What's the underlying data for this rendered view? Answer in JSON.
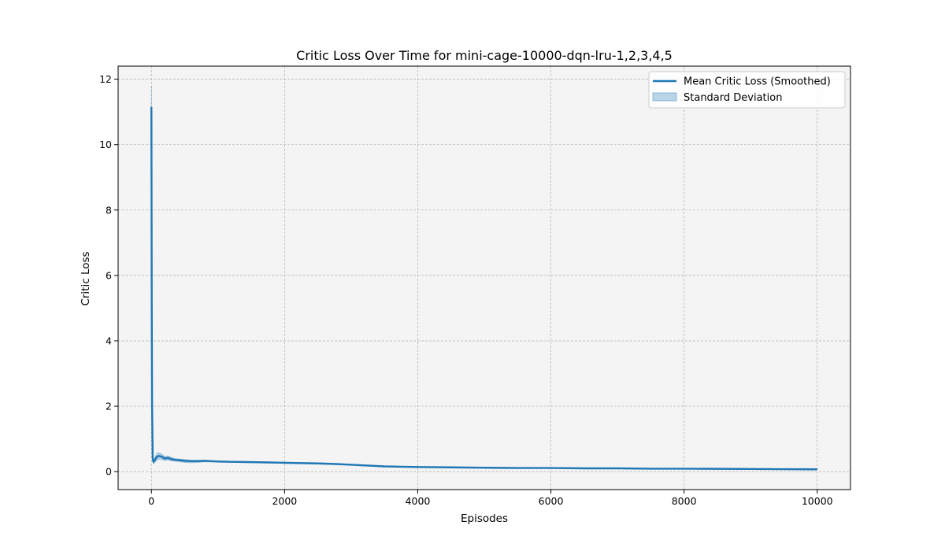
{
  "chart_data": {
    "type": "line",
    "title": "Critic Loss Over Time for mini-cage-10000-dqn-lru-1,2,3,4,5",
    "xlabel": "Episodes",
    "ylabel": "Critic Loss",
    "xlim": [
      -500,
      10500
    ],
    "ylim": [
      -0.55,
      12.4
    ],
    "xticks": [
      0,
      2000,
      4000,
      6000,
      8000,
      10000
    ],
    "yticks": [
      0,
      2,
      4,
      6,
      8,
      10,
      12
    ],
    "grid": true,
    "legend_position": "top-right",
    "colors": {
      "line": "#1f77b4",
      "band": "#1f77b4",
      "plot_bg": "#f4f4f4",
      "grid": "#b0b0b0"
    },
    "series": [
      {
        "name": "Mean Critic Loss (Smoothed)",
        "x": [
          0,
          5,
          10,
          20,
          30,
          50,
          80,
          110,
          150,
          200,
          250,
          300,
          350,
          400,
          500,
          600,
          700,
          800,
          1000,
          1200,
          1500,
          1800,
          2000,
          2500,
          2800,
          3000,
          3500,
          4000,
          4500,
          5000,
          5500,
          6000,
          6500,
          7000,
          7500,
          8000,
          8500,
          9000,
          9500,
          10000
        ],
        "values": [
          11.15,
          5.0,
          2.0,
          0.4,
          0.3,
          0.35,
          0.45,
          0.48,
          0.46,
          0.4,
          0.42,
          0.38,
          0.36,
          0.35,
          0.33,
          0.32,
          0.32,
          0.33,
          0.31,
          0.3,
          0.29,
          0.28,
          0.27,
          0.25,
          0.23,
          0.21,
          0.16,
          0.14,
          0.13,
          0.12,
          0.11,
          0.11,
          0.1,
          0.1,
          0.09,
          0.09,
          0.085,
          0.08,
          0.075,
          0.07
        ]
      },
      {
        "name": "Standard Deviation",
        "x": [
          0,
          5,
          10,
          20,
          30,
          50,
          80,
          110,
          150,
          200,
          250,
          300,
          350,
          400,
          500,
          600,
          700,
          800,
          1000,
          1200,
          1500,
          1800,
          2000,
          2500,
          2800,
          3000,
          3500,
          4000,
          4500,
          5000,
          5500,
          6000,
          6500,
          7000,
          7500,
          8000,
          8500,
          9000,
          9500,
          10000
        ],
        "upper": [
          11.8,
          5.6,
          2.3,
          0.48,
          0.36,
          0.42,
          0.55,
          0.58,
          0.54,
          0.46,
          0.48,
          0.43,
          0.4,
          0.39,
          0.37,
          0.35,
          0.35,
          0.35,
          0.33,
          0.32,
          0.31,
          0.3,
          0.29,
          0.27,
          0.25,
          0.22,
          0.17,
          0.15,
          0.14,
          0.13,
          0.12,
          0.12,
          0.11,
          0.11,
          0.1,
          0.1,
          0.095,
          0.09,
          0.085,
          0.08
        ],
        "lower": [
          10.5,
          4.4,
          1.7,
          0.32,
          0.24,
          0.28,
          0.35,
          0.38,
          0.38,
          0.34,
          0.36,
          0.33,
          0.32,
          0.31,
          0.28,
          0.27,
          0.28,
          0.3,
          0.29,
          0.28,
          0.27,
          0.26,
          0.25,
          0.23,
          0.21,
          0.2,
          0.15,
          0.13,
          0.12,
          0.11,
          0.1,
          0.1,
          0.09,
          0.09,
          0.08,
          0.08,
          0.075,
          0.07,
          0.065,
          0.06
        ]
      }
    ]
  }
}
